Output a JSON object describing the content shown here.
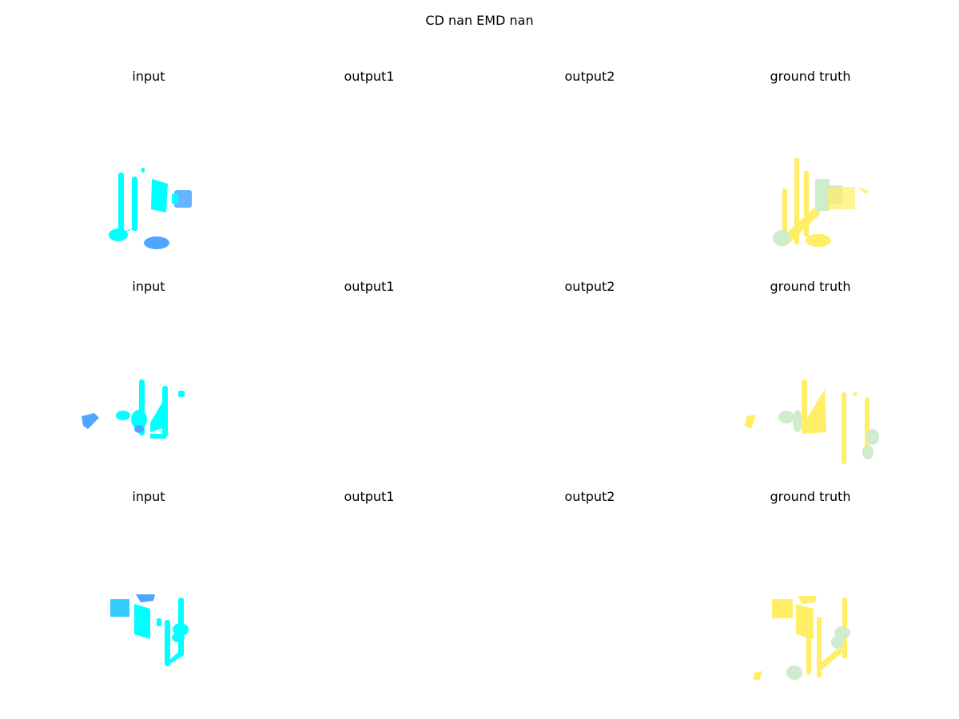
{
  "figure": {
    "title": "CD nan  EMD nan"
  },
  "rows": [
    {
      "titles": [
        "input",
        "output1",
        "output2",
        "ground truth"
      ]
    },
    {
      "titles": [
        "input",
        "output1",
        "output2",
        "ground truth"
      ]
    },
    {
      "titles": [
        "input",
        "output1",
        "output2",
        "ground truth"
      ]
    }
  ],
  "colors": {
    "input_primary": "#00ffff",
    "input_secondary": "#4da6ff",
    "input_mid": "#33ccff",
    "gt_primary": "#ffee66",
    "gt_secondary": "#cfeccc"
  }
}
